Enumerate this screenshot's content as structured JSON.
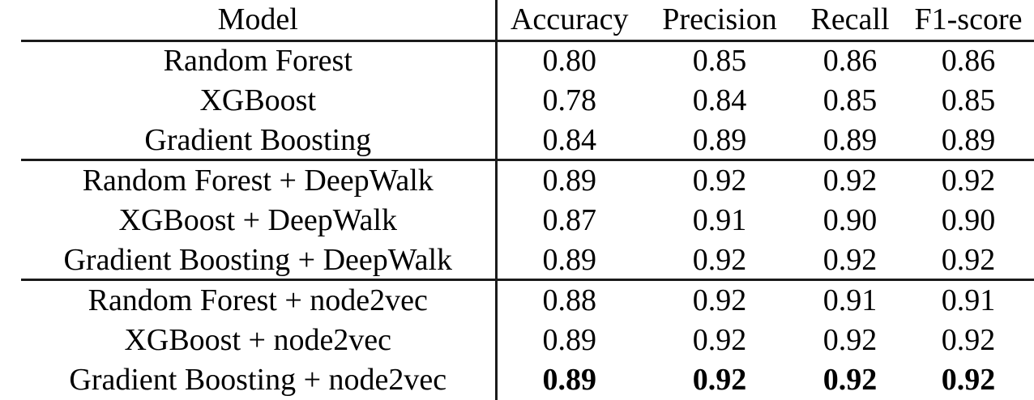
{
  "table": {
    "columns": [
      "Model",
      "Accuracy",
      "Precision",
      "Recall",
      "F1-score"
    ],
    "rows": [
      {
        "model": "Random Forest",
        "values": [
          "0.80",
          "0.85",
          "0.86",
          "0.86"
        ],
        "bold": false
      },
      {
        "model": "XGBoost",
        "values": [
          "0.78",
          "0.84",
          "0.85",
          "0.85"
        ],
        "bold": false
      },
      {
        "model": "Gradient Boosting",
        "values": [
          "0.84",
          "0.89",
          "0.89",
          "0.89"
        ],
        "bold": false
      },
      {
        "model": "Random Forest + DeepWalk",
        "values": [
          "0.89",
          "0.92",
          "0.92",
          "0.92"
        ],
        "bold": false
      },
      {
        "model": "XGBoost + DeepWalk",
        "values": [
          "0.87",
          "0.91",
          "0.90",
          "0.90"
        ],
        "bold": false
      },
      {
        "model": "Gradient Boosting + DeepWalk",
        "values": [
          "0.89",
          "0.92",
          "0.92",
          "0.92"
        ],
        "bold": false
      },
      {
        "model": "Random Forest + node2vec",
        "values": [
          "0.88",
          "0.92",
          "0.91",
          "0.91"
        ],
        "bold": false
      },
      {
        "model": "XGBoost + node2vec",
        "values": [
          "0.89",
          "0.92",
          "0.92",
          "0.92"
        ],
        "bold": false
      },
      {
        "model": "Gradient Boosting + node2vec",
        "values": [
          "0.89",
          "0.92",
          "0.92",
          "0.92"
        ],
        "bold": true
      }
    ],
    "colors": {
      "text": "#000000",
      "rule": "#1b1b1b",
      "background": "#ffffff"
    }
  }
}
